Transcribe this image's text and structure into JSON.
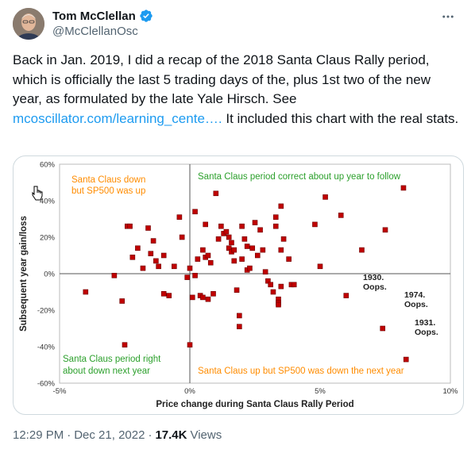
{
  "tweet": {
    "author_name": "Tom McClellan",
    "handle": "@McClellanOsc",
    "text_before_link": "Back in Jan. 2019, I did a recap of the 2018 Santa Claus Rally period, which is officially the last 5 trading days of the, plus 1st two of the new year, as formulated by the late Yale Hirsch. See ",
    "link_text": "mcoscillator.com/learning_cente….",
    "text_after_link": " It included this chart with the real stats.",
    "time": "12:29 PM",
    "separator": "·",
    "date": "Dec 21, 2022",
    "views_count": "17.4K",
    "views_label": "Views"
  },
  "colors": {
    "link": "#1d9bf0",
    "verified": "#1d9bf0",
    "point": "#c00000",
    "orange_text": "#ff8c00",
    "green_text": "#2ca02c"
  },
  "icons": {
    "verified": "verified-badge-icon",
    "more": "more-options-icon"
  },
  "chart_data": {
    "type": "scatter",
    "xlabel": "Price change during Santa Claus Rally Period",
    "ylabel": "Subsequent year gain/loss",
    "xlim": [
      -0.05,
      0.1
    ],
    "ylim": [
      -0.6,
      0.6
    ],
    "xticks": [
      -0.05,
      0.0,
      0.05,
      0.1
    ],
    "xtick_labels": [
      "-5%",
      "0%",
      "5%",
      "10%"
    ],
    "yticks": [
      0.6,
      0.4,
      0.2,
      0.0,
      -0.2,
      -0.4,
      -0.6
    ],
    "ytick_labels": [
      "60%",
      "40%",
      "20%",
      "0%",
      "-20%",
      "-40%",
      "-60%"
    ],
    "grid": false,
    "quadrant_labels": {
      "top_left": [
        "Santa Claus down",
        "but SP500 was up"
      ],
      "top_right": "Santa Claus period correct about up year to follow",
      "bottom_left": [
        "Santa Claus period right",
        "about down next year"
      ],
      "bottom_right": "Santa Claus up but SP500 was down the next year"
    },
    "annotations": [
      {
        "text": [
          "1930.",
          "Oops."
        ],
        "x": 0.06,
        "y": -0.12
      },
      {
        "text": [
          "1974.",
          "Oops."
        ],
        "x": 0.074,
        "y": -0.295
      },
      {
        "text": [
          "1931.",
          "Oops."
        ],
        "x": 0.082,
        "y": -0.47
      }
    ],
    "points": [
      [
        -0.04,
        -0.1
      ],
      [
        -0.029,
        -0.01
      ],
      [
        -0.026,
        -0.15
      ],
      [
        -0.025,
        -0.39
      ],
      [
        -0.024,
        0.26
      ],
      [
        -0.023,
        0.26
      ],
      [
        -0.022,
        0.09
      ],
      [
        -0.02,
        0.14
      ],
      [
        -0.018,
        0.03
      ],
      [
        -0.016,
        0.25
      ],
      [
        -0.015,
        0.11
      ],
      [
        -0.014,
        0.18
      ],
      [
        -0.013,
        0.07
      ],
      [
        -0.012,
        0.04
      ],
      [
        -0.01,
        0.1
      ],
      [
        -0.01,
        -0.11
      ],
      [
        -0.008,
        -0.12
      ],
      [
        -0.006,
        0.04
      ],
      [
        -0.004,
        0.31
      ],
      [
        -0.003,
        0.2
      ],
      [
        -0.001,
        -0.02
      ],
      [
        0.0,
        -0.39
      ],
      [
        0.0,
        0.03
      ],
      [
        0.001,
        -0.13
      ],
      [
        0.002,
        0.34
      ],
      [
        0.002,
        -0.01
      ],
      [
        0.003,
        0.08
      ],
      [
        0.004,
        -0.12
      ],
      [
        0.005,
        0.13
      ],
      [
        0.005,
        -0.13
      ],
      [
        0.006,
        0.27
      ],
      [
        0.006,
        0.09
      ],
      [
        0.007,
        0.1
      ],
      [
        0.007,
        -0.14
      ],
      [
        0.008,
        0.06
      ],
      [
        0.009,
        -0.11
      ],
      [
        0.01,
        0.44
      ],
      [
        0.011,
        0.19
      ],
      [
        0.012,
        0.26
      ],
      [
        0.013,
        0.22
      ],
      [
        0.014,
        0.23
      ],
      [
        0.015,
        0.2
      ],
      [
        0.015,
        0.14
      ],
      [
        0.016,
        0.17
      ],
      [
        0.016,
        0.12
      ],
      [
        0.017,
        0.13
      ],
      [
        0.017,
        0.07
      ],
      [
        0.018,
        -0.09
      ],
      [
        0.019,
        -0.23
      ],
      [
        0.019,
        -0.29
      ],
      [
        0.02,
        0.08
      ],
      [
        0.02,
        0.26
      ],
      [
        0.021,
        0.19
      ],
      [
        0.022,
        0.15
      ],
      [
        0.022,
        0.02
      ],
      [
        0.023,
        0.03
      ],
      [
        0.024,
        0.14
      ],
      [
        0.025,
        0.28
      ],
      [
        0.026,
        0.1
      ],
      [
        0.027,
        0.24
      ],
      [
        0.028,
        0.13
      ],
      [
        0.029,
        0.01
      ],
      [
        0.03,
        -0.04
      ],
      [
        0.031,
        -0.06
      ],
      [
        0.032,
        -0.1
      ],
      [
        0.033,
        0.31
      ],
      [
        0.033,
        0.26
      ],
      [
        0.034,
        -0.14
      ],
      [
        0.034,
        -0.16
      ],
      [
        0.034,
        -0.17
      ],
      [
        0.035,
        -0.07
      ],
      [
        0.035,
        0.13
      ],
      [
        0.035,
        0.37
      ],
      [
        0.036,
        0.19
      ],
      [
        0.038,
        0.08
      ],
      [
        0.039,
        -0.06
      ],
      [
        0.04,
        -0.06
      ],
      [
        0.048,
        0.27
      ],
      [
        0.05,
        0.04
      ],
      [
        0.052,
        0.42
      ],
      [
        0.058,
        0.32
      ],
      [
        0.06,
        -0.12
      ],
      [
        0.066,
        0.13
      ],
      [
        0.074,
        -0.3
      ],
      [
        0.075,
        0.24
      ],
      [
        0.082,
        0.47
      ],
      [
        0.083,
        -0.47
      ]
    ]
  }
}
